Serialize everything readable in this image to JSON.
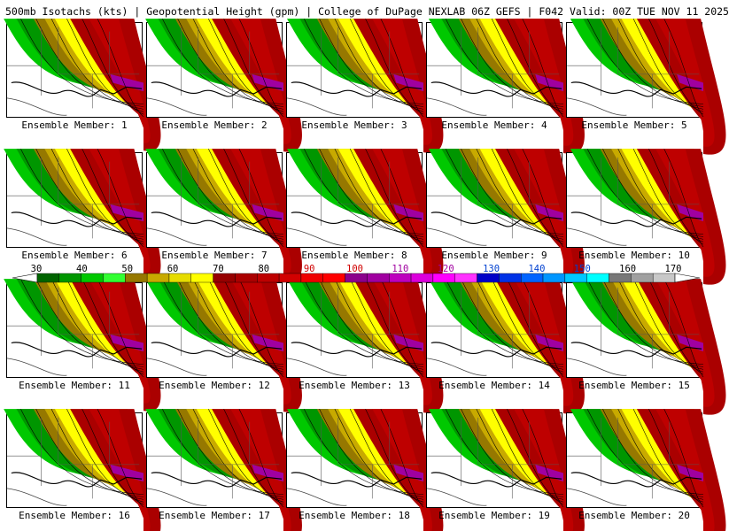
{
  "header": {
    "title": "500mb Isotachs (kts) | Geopotential Height (gpm) | College of DuPage NEXLAB   06Z GEFS | F042 Valid: 00Z TUE NOV 11 2025"
  },
  "panels": [
    {
      "caption": "Ensemble Member: 1"
    },
    {
      "caption": "Ensemble Member: 2"
    },
    {
      "caption": "Ensemble Member: 3"
    },
    {
      "caption": "Ensemble Member: 4"
    },
    {
      "caption": "Ensemble Member: 5"
    },
    {
      "caption": "Ensemble Member: 6"
    },
    {
      "caption": "Ensemble Member: 7"
    },
    {
      "caption": "Ensemble Member: 8"
    },
    {
      "caption": "Ensemble Member: 9"
    },
    {
      "caption": "Ensemble Member: 10"
    },
    {
      "caption": "Ensemble Member: 11"
    },
    {
      "caption": "Ensemble Member: 12"
    },
    {
      "caption": "Ensemble Member: 13"
    },
    {
      "caption": "Ensemble Member: 14"
    },
    {
      "caption": "Ensemble Member: 15"
    },
    {
      "caption": "Ensemble Member: 16"
    },
    {
      "caption": "Ensemble Member: 17"
    },
    {
      "caption": "Ensemble Member: 18"
    },
    {
      "caption": "Ensemble Member: 19"
    },
    {
      "caption": "Ensemble Member: 20"
    }
  ],
  "colorbar": {
    "labels": [
      "30",
      "40",
      "50",
      "60",
      "70",
      "80",
      "90",
      "100",
      "110",
      "120",
      "130",
      "140",
      "150",
      "160",
      "170"
    ],
    "colors": [
      "#006400",
      "#009600",
      "#00c800",
      "#32ff32",
      "#967800",
      "#c8aa00",
      "#e6dc00",
      "#ffff00",
      "#960000",
      "#aa0000",
      "#be0000",
      "#d20000",
      "#f00000",
      "#ff0000",
      "#8c008c",
      "#a000a0",
      "#be00be",
      "#dc00dc",
      "#ff00ff",
      "#ff32ff",
      "#0000c8",
      "#0032e6",
      "#0064ff",
      "#0096ff",
      "#00c8ff",
      "#00ffff",
      "#787878",
      "#a0a0a0",
      "#c8c8c8"
    ]
  }
}
